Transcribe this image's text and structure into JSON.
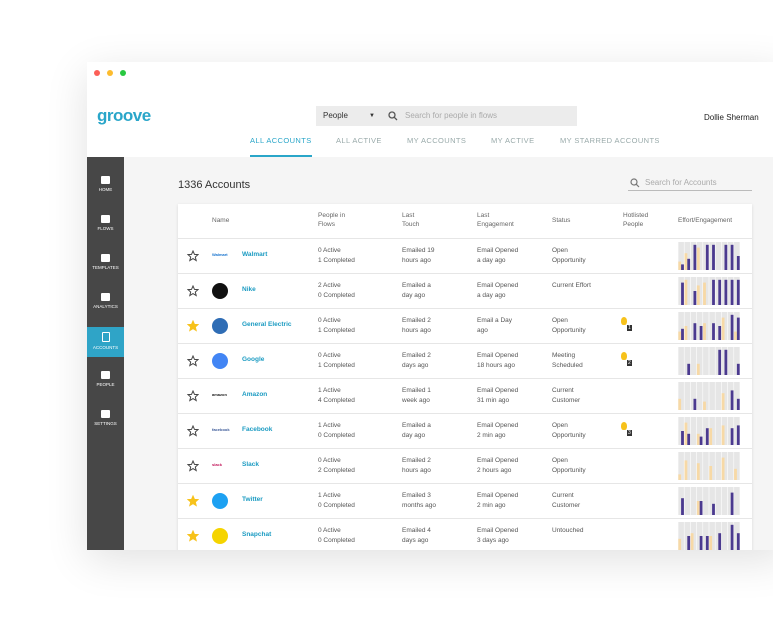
{
  "app": {
    "logo": "groove",
    "search_type": "People",
    "search_placeholder": "Search for people in flows",
    "user": "Dollie Sherman"
  },
  "tabs": [
    {
      "label": "ALL ACCOUNTS",
      "active": true
    },
    {
      "label": "ALL ACTIVE",
      "active": false
    },
    {
      "label": "MY ACCOUNTS",
      "active": false
    },
    {
      "label": "MY ACTIVE",
      "active": false
    },
    {
      "label": "MY STARRED ACCOUNTS",
      "active": false
    }
  ],
  "sidebar": [
    {
      "label": "HOME",
      "active": false
    },
    {
      "label": "FLOWS",
      "active": false
    },
    {
      "label": "TEMPLATES",
      "active": false
    },
    {
      "label": "ANALYTICS",
      "active": false
    },
    {
      "label": "ACCOUNTS",
      "active": true
    },
    {
      "label": "PEOPLE",
      "active": false
    },
    {
      "label": "SETTINGS",
      "active": false
    }
  ],
  "page": {
    "title": "1336 Accounts",
    "search_placeholder": "Search for Accounts"
  },
  "table": {
    "columns": [
      [
        "Name"
      ],
      [
        "People in",
        "Flows"
      ],
      [
        "Last",
        "Touch"
      ],
      [
        "Last",
        "Engagement"
      ],
      [
        "Status"
      ],
      [
        "Hotlisted",
        "People"
      ],
      [
        "Effort/Engagement"
      ]
    ],
    "rows": [
      {
        "starred": false,
        "logo": {
          "text": "Walmart",
          "color": "#1a75cf"
        },
        "name": "Walmart",
        "flows": [
          "0 Active",
          "1 Completed"
        ],
        "last_touch": [
          "Emailed 19",
          "hours ago"
        ],
        "last_engagement": [
          "Email Opened",
          "a day ago"
        ],
        "status": [
          "Open",
          "Opportunity"
        ],
        "hotlisted": null,
        "engagement": [
          3,
          6,
          0,
          8,
          0,
          0,
          0,
          0,
          0,
          0
        ],
        "effort": [
          2,
          4,
          9,
          0,
          9,
          9,
          0,
          9,
          9,
          5
        ]
      },
      {
        "starred": false,
        "logo": {
          "color": "#111111"
        },
        "name": "Nike",
        "flows": [
          "2 Active",
          "0 Completed"
        ],
        "last_touch": [
          "Emailed a",
          "day ago"
        ],
        "last_engagement": [
          "Email Opened",
          "a day ago"
        ],
        "status": [
          "Current Effort"
        ],
        "hotlisted": null,
        "engagement": [
          0,
          9,
          0,
          7,
          8,
          0,
          0,
          0,
          0,
          0
        ],
        "effort": [
          8,
          0,
          5,
          0,
          0,
          9,
          9,
          9,
          9,
          9
        ]
      },
      {
        "starred": true,
        "logo": {
          "color": "#2f6db5"
        },
        "name": "General Electric",
        "flows": [
          "0 Active",
          "1 Completed"
        ],
        "last_touch": [
          "Emailed 2",
          "hours ago"
        ],
        "last_engagement": [
          "Email a Day",
          "ago"
        ],
        "status": [
          "Open",
          "Opportunity"
        ],
        "hotlisted": 1,
        "engagement": [
          3,
          5,
          0,
          0,
          6,
          0,
          0,
          8,
          0,
          3
        ],
        "effort": [
          4,
          0,
          6,
          5,
          0,
          6,
          5,
          0,
          9,
          8
        ]
      },
      {
        "starred": false,
        "logo": {
          "color": "#4285f4"
        },
        "name": "Google",
        "flows": [
          "0 Active",
          "1 Completed"
        ],
        "last_touch": [
          "Emailed 2",
          "days ago"
        ],
        "last_engagement": [
          "Email Opened",
          "18 hours ago"
        ],
        "status": [
          "Meeting",
          "Scheduled"
        ],
        "hotlisted": 2,
        "engagement": [
          0,
          0,
          0,
          4,
          0,
          0,
          0,
          0,
          0,
          0
        ],
        "effort": [
          0,
          4,
          0,
          0,
          0,
          0,
          9,
          9,
          0,
          4
        ]
      },
      {
        "starred": false,
        "logo": {
          "text": "amazon",
          "color": "#222222"
        },
        "name": "Amazon",
        "flows": [
          "1 Active",
          "4 Completed"
        ],
        "last_touch": [
          "Emailed 1",
          "week ago"
        ],
        "last_engagement": [
          "Email Opened",
          "31 min ago"
        ],
        "status": [
          "Current",
          "Customer"
        ],
        "hotlisted": null,
        "engagement": [
          4,
          0,
          0,
          0,
          3,
          0,
          0,
          6,
          0,
          0
        ],
        "effort": [
          0,
          0,
          4,
          0,
          0,
          0,
          0,
          0,
          7,
          4
        ]
      },
      {
        "starred": false,
        "logo": {
          "text": "facebook",
          "color": "#3b5998"
        },
        "name": "Facebook",
        "flows": [
          "1 Active",
          "0 Completed"
        ],
        "last_touch": [
          "Emailed a",
          "day ago"
        ],
        "last_engagement": [
          "Email Opened",
          "2 min ago"
        ],
        "status": [
          "Open",
          "Opportunity"
        ],
        "hotlisted": 3,
        "engagement": [
          0,
          8,
          0,
          4,
          0,
          6,
          0,
          7,
          0,
          0
        ],
        "effort": [
          5,
          4,
          0,
          3,
          6,
          0,
          0,
          0,
          6,
          7
        ]
      },
      {
        "starred": false,
        "logo": {
          "text": "slack",
          "color": "#c2185b"
        },
        "name": "Slack",
        "flows": [
          "0 Active",
          "2 Completed"
        ],
        "last_touch": [
          "Emailed 2",
          "hours ago"
        ],
        "last_engagement": [
          "Email Opened",
          "2 hours ago"
        ],
        "status": [
          "Open",
          "Opportunity"
        ],
        "hotlisted": null,
        "engagement": [
          2,
          7,
          0,
          6,
          0,
          5,
          0,
          8,
          0,
          4
        ],
        "effort": [
          0,
          0,
          0,
          0,
          0,
          0,
          0,
          0,
          0,
          0
        ]
      },
      {
        "starred": true,
        "logo": {
          "color": "#1da1f2"
        },
        "name": "Twitter",
        "flows": [
          "1 Active",
          "0 Completed"
        ],
        "last_touch": [
          "Emailed 3",
          "months ago"
        ],
        "last_engagement": [
          "Email Opened",
          "2 min ago"
        ],
        "status": [
          "Current",
          "Customer"
        ],
        "hotlisted": null,
        "engagement": [
          0,
          0,
          0,
          5,
          0,
          0,
          0,
          0,
          0,
          0
        ],
        "effort": [
          6,
          0,
          0,
          5,
          0,
          4,
          0,
          0,
          8,
          0
        ]
      },
      {
        "starred": true,
        "logo": {
          "color": "#f5d400"
        },
        "name": "Snapchat",
        "flows": [
          "0 Active",
          "0 Completed"
        ],
        "last_touch": [
          "Emailed 4",
          "days ago"
        ],
        "last_engagement": [
          "Email Opened",
          "3 days ago"
        ],
        "status": [
          "Untouched"
        ],
        "hotlisted": null,
        "engagement": [
          4,
          0,
          6,
          0,
          0,
          5,
          0,
          0,
          0,
          0
        ],
        "effort": [
          0,
          5,
          0,
          5,
          5,
          0,
          6,
          0,
          9,
          6
        ]
      }
    ]
  }
}
